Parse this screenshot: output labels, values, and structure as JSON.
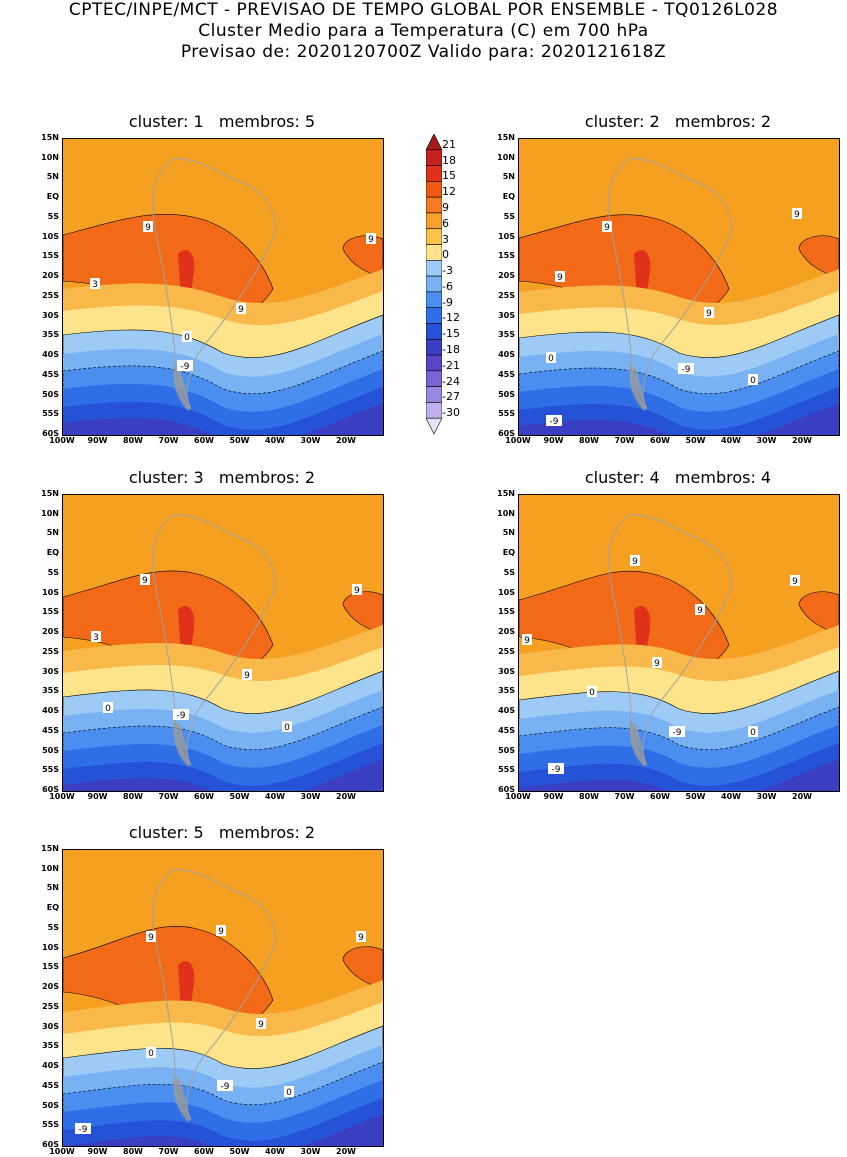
{
  "header": {
    "line1": "CPTEC/INPE/MCT - PREVISAO DE TEMPO GLOBAL POR ENSEMBLE - TQ0126L028",
    "line2": "Cluster Medio para a Temperatura (C) em 700 hPa",
    "line3": "Previsao de: 2020120700Z   Valido para: 2020121618Z"
  },
  "panels": [
    {
      "title": "cluster: 1   membros: 5",
      "labels": [
        "9",
        "9",
        "3",
        "9",
        "0",
        "-9"
      ]
    },
    {
      "title": "cluster: 2   membros: 2",
      "labels": [
        "9",
        "9",
        "9",
        "9",
        "0",
        "-9",
        "0",
        "-9"
      ]
    },
    {
      "title": "cluster: 3   membros: 2",
      "labels": [
        "9",
        "9",
        "3",
        "9",
        "0",
        "-9",
        "0"
      ]
    },
    {
      "title": "cluster: 4   membros: 4",
      "labels": [
        "9",
        "9",
        "9",
        "9",
        "9",
        "0",
        "-9",
        "0",
        "-9"
      ]
    },
    {
      "title": "cluster: 5   membros: 2",
      "labels": [
        "9",
        "9",
        "9",
        "9",
        "0",
        "-9",
        "0",
        "-9"
      ]
    }
  ],
  "lat_labels": [
    "15N",
    "10N",
    "5N",
    "EQ",
    "5S",
    "10S",
    "15S",
    "20S",
    "25S",
    "30S",
    "35S",
    "40S",
    "45S",
    "50S",
    "55S",
    "60S"
  ],
  "lon_labels": [
    "100W",
    "90W",
    "80W",
    "70W",
    "60W",
    "50W",
    "40W",
    "30W",
    "20W"
  ],
  "colorbar": {
    "labels": [
      "21",
      "18",
      "15",
      "12",
      "9",
      "6",
      "3",
      "0",
      "-3",
      "-6",
      "-9",
      "-12",
      "-15",
      "-18",
      "-21",
      "-24",
      "-27",
      "-30"
    ],
    "colors": [
      "#a51a1a",
      "#c62020",
      "#e0321a",
      "#f05a10",
      "#f57a22",
      "#f7a02e",
      "#f9c24a",
      "#fde48a",
      "#9ecbf6",
      "#78b2f2",
      "#4a8ff0",
      "#2e6fe8",
      "#2652d8",
      "#3a3ec0",
      "#5a44c8",
      "#7a64d8",
      "#9a88e0",
      "#c0b0ec",
      "#e8e0f8"
    ]
  }
}
